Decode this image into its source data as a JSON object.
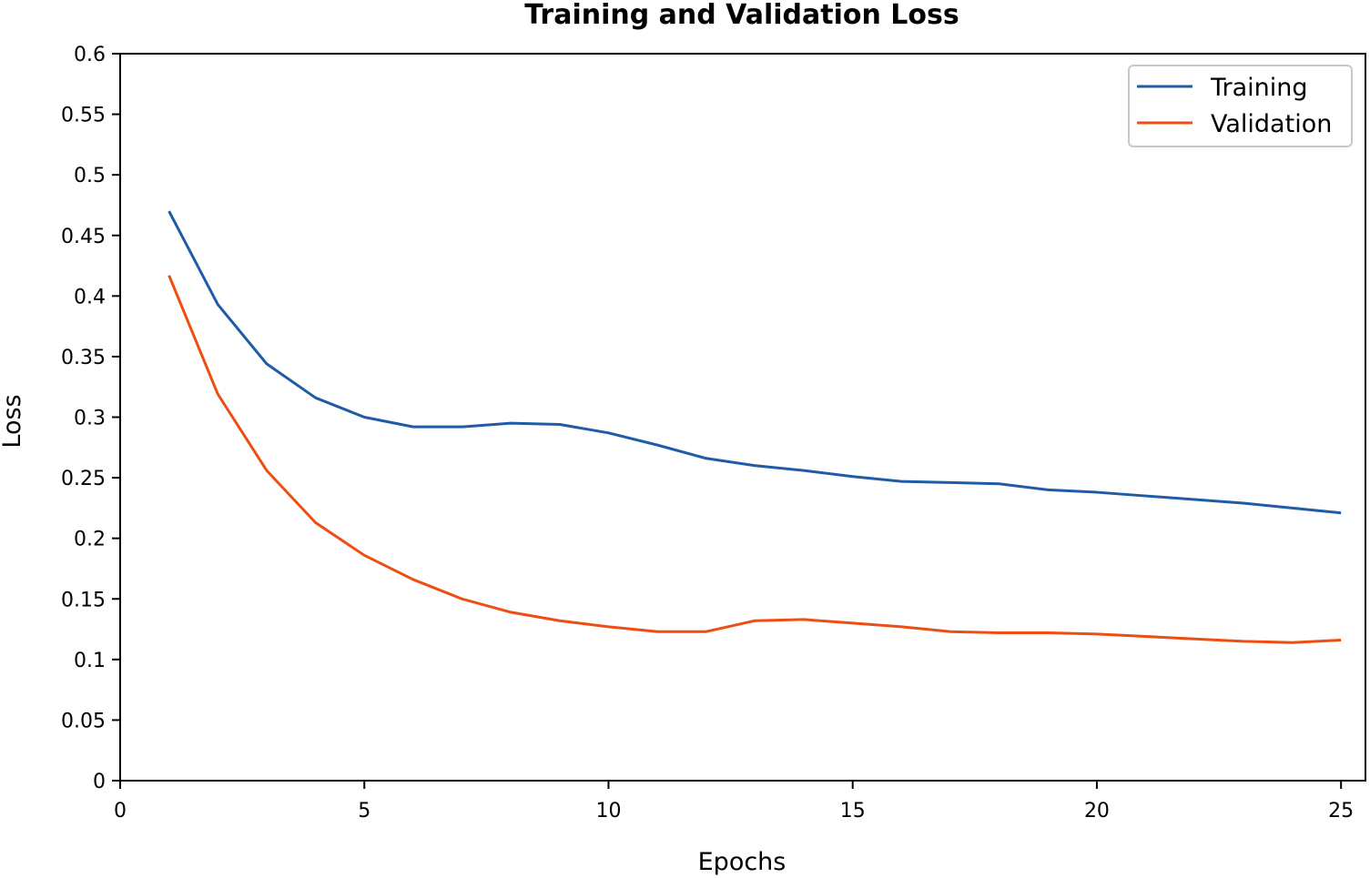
{
  "chart_data": {
    "type": "line",
    "title": "Training and Validation Loss",
    "xlabel": "Epochs",
    "ylabel": "Loss",
    "xlim": [
      0,
      25.5
    ],
    "ylim": [
      0,
      0.6
    ],
    "x_ticks": [
      0,
      5,
      10,
      15,
      20,
      25
    ],
    "y_ticks": [
      0,
      0.05,
      0.1,
      0.15,
      0.2,
      0.25,
      0.3,
      0.35,
      0.4,
      0.45,
      0.5,
      0.55,
      0.6
    ],
    "x_tick_labels": [
      "0",
      "5",
      "10",
      "15",
      "20",
      "25"
    ],
    "y_tick_labels": [
      "0",
      "0.05",
      "0.1",
      "0.15",
      "0.2",
      "0.25",
      "0.3",
      "0.35",
      "0.4",
      "0.45",
      "0.5",
      "0.55",
      "0.6"
    ],
    "grid": false,
    "legend_position": "top-right",
    "x": [
      1,
      2,
      3,
      4,
      5,
      6,
      7,
      8,
      9,
      10,
      11,
      12,
      13,
      14,
      15,
      16,
      17,
      18,
      19,
      20,
      21,
      22,
      23,
      24,
      25
    ],
    "series": [
      {
        "name": "Training",
        "color": "#1f5ba6",
        "values": [
          0.47,
          0.393,
          0.344,
          0.316,
          0.3,
          0.292,
          0.292,
          0.295,
          0.294,
          0.287,
          0.277,
          0.266,
          0.26,
          0.256,
          0.251,
          0.247,
          0.246,
          0.245,
          0.24,
          0.238,
          0.235,
          0.232,
          0.229,
          0.225,
          0.221
        ]
      },
      {
        "name": "Validation",
        "color": "#ee4e13",
        "values": [
          0.417,
          0.319,
          0.256,
          0.213,
          0.186,
          0.166,
          0.15,
          0.139,
          0.132,
          0.127,
          0.123,
          0.123,
          0.132,
          0.133,
          0.13,
          0.127,
          0.123,
          0.122,
          0.122,
          0.121,
          0.119,
          0.117,
          0.115,
          0.114,
          0.116
        ]
      }
    ]
  }
}
